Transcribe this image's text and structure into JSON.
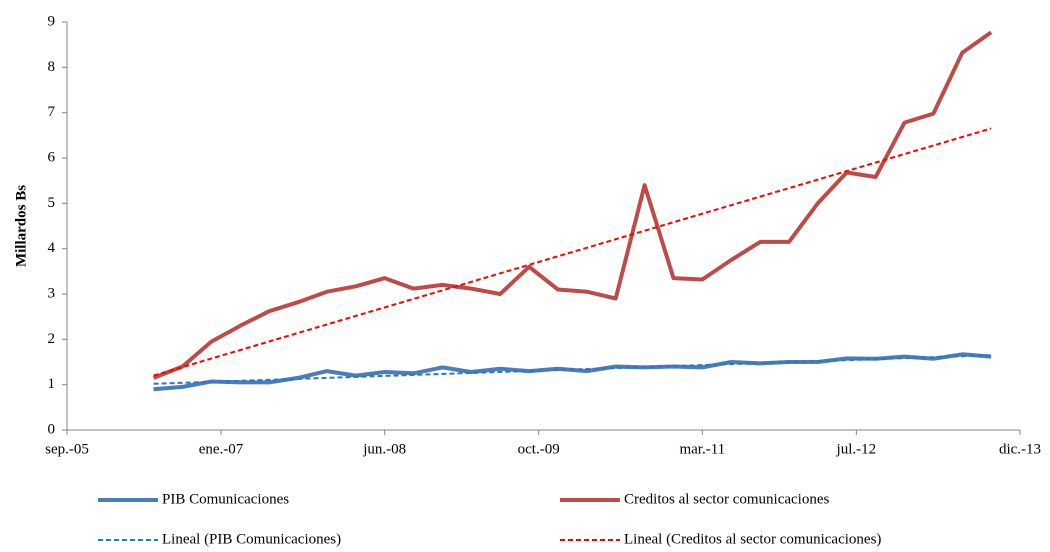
{
  "chart_data": {
    "type": "line",
    "y_label": "Millardos Bs",
    "x": [
      "2006-06",
      "2006-09",
      "2006-12",
      "2007-03",
      "2007-06",
      "2007-09",
      "2007-12",
      "2008-03",
      "2008-06",
      "2008-09",
      "2008-12",
      "2009-03",
      "2009-06",
      "2009-09",
      "2009-12",
      "2010-03",
      "2010-06",
      "2010-09",
      "2010-12",
      "2011-03",
      "2011-06",
      "2011-09",
      "2011-12",
      "2012-03",
      "2012-06",
      "2012-09",
      "2012-12",
      "2013-03",
      "2013-06",
      "2013-09"
    ],
    "series": [
      {
        "name": "PIB Comunicaciones",
        "color": "#4a7ebb",
        "dash": false,
        "values": [
          0.9,
          0.95,
          1.07,
          1.05,
          1.05,
          1.15,
          1.3,
          1.2,
          1.28,
          1.25,
          1.38,
          1.28,
          1.35,
          1.3,
          1.35,
          1.3,
          1.4,
          1.38,
          1.4,
          1.38,
          1.5,
          1.47,
          1.5,
          1.5,
          1.58,
          1.57,
          1.62,
          1.57,
          1.67,
          1.62
        ]
      },
      {
        "name": "Creditos al sector comunicaciones",
        "color": "#be4b48",
        "dash": false,
        "values": [
          1.15,
          1.4,
          1.95,
          2.3,
          2.62,
          2.82,
          3.05,
          3.17,
          3.35,
          3.12,
          3.2,
          3.12,
          3.0,
          3.6,
          3.1,
          3.05,
          2.9,
          5.4,
          3.35,
          3.32,
          3.75,
          4.15,
          4.15,
          5.0,
          5.68,
          5.58,
          6.78,
          6.98,
          8.32,
          8.77
        ]
      },
      {
        "name": "Lineal (PIB Comunicaciones)",
        "color": "#2e75c5",
        "dash": true,
        "x": [
          "2006-06",
          "2013-09"
        ],
        "values": [
          1.02,
          1.65
        ]
      },
      {
        "name": "Lineal (Creditos al sector comunicaciones)",
        "color": "#ff0000",
        "dash": true,
        "x": [
          "2006-06",
          "2013-09"
        ],
        "values": [
          1.2,
          6.65
        ]
      }
    ],
    "xlim": [
      "2005-09",
      "2013-12"
    ],
    "xticks": [
      {
        "value": "2005-09",
        "label": "sep.-05"
      },
      {
        "value": "2007-01",
        "label": "ene.-07"
      },
      {
        "value": "2008-06",
        "label": "jun.-08"
      },
      {
        "value": "2009-10",
        "label": "oct.-09"
      },
      {
        "value": "2011-03",
        "label": "mar.-11"
      },
      {
        "value": "2012-07",
        "label": "jul.-12"
      },
      {
        "value": "2013-12",
        "label": "dic.-13"
      }
    ],
    "ylim": [
      0,
      9
    ],
    "yticks": [
      0,
      1,
      2,
      3,
      4,
      5,
      6,
      7,
      8,
      9
    ],
    "legend": "bottom"
  }
}
